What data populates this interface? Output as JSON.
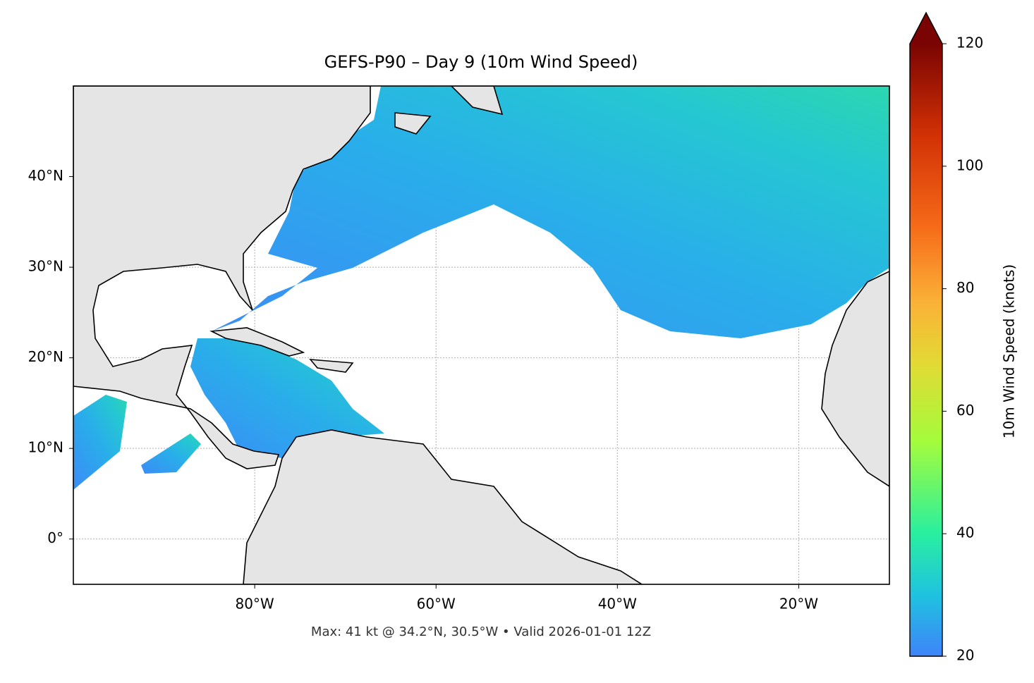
{
  "map": {
    "title": "GEFS-P90 – Day 9 (10m Wind Speed)",
    "footer": "Max: 41 kt @ 34.2°N, 30.5°W • Valid 2026-01-01 12Z",
    "lonlim": [
      -100,
      -10
    ],
    "latlim": [
      -5,
      50
    ],
    "lon_ticks": [
      {
        "value": -80,
        "label": "80°W"
      },
      {
        "value": -60,
        "label": "60°W"
      },
      {
        "value": -40,
        "label": "40°W"
      },
      {
        "value": -20,
        "label": "20°W"
      }
    ],
    "lat_ticks": [
      {
        "value": 0,
        "label": "0°"
      },
      {
        "value": 10,
        "label": "10°N"
      },
      {
        "value": 20,
        "label": "20°N"
      },
      {
        "value": 30,
        "label": "30°N"
      },
      {
        "value": 40,
        "label": "40°N"
      }
    ],
    "grid": true,
    "colorbar": {
      "label": "10m Wind Speed (knots)",
      "lim": [
        20,
        120
      ],
      "ticks": [
        20,
        40,
        60,
        80,
        100,
        120
      ],
      "extend": "max"
    }
  }
}
